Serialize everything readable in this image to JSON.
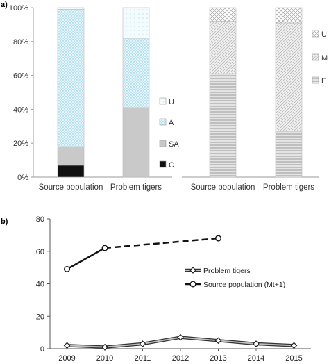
{
  "chart_data": [
    {
      "panel": "a)",
      "type": "bar",
      "stacked": true,
      "categories": [
        "Source population",
        "Problem tigers"
      ],
      "series": [
        {
          "name": "C",
          "color": "#111111",
          "pattern": "solid",
          "values": [
            7,
            0
          ]
        },
        {
          "name": "SA",
          "color": "#c9c9c9",
          "pattern": "solid",
          "values": [
            11,
            41
          ]
        },
        {
          "name": "A",
          "color": "#bfe3ef",
          "pattern": "dots",
          "values": [
            81,
            41
          ]
        },
        {
          "name": "U",
          "color": "#d6eef5",
          "pattern": "light",
          "values": [
            1,
            18
          ]
        }
      ],
      "yticks": [
        "0%",
        "20%",
        "40%",
        "60%",
        "80%",
        "100%"
      ],
      "ylim": [
        0,
        100
      ],
      "legend_position": "right"
    },
    {
      "panel": "",
      "type": "bar",
      "stacked": true,
      "categories": [
        "Source population",
        "Problem tigers"
      ],
      "series": [
        {
          "name": "F",
          "color": "#b7b7b7",
          "pattern": "horizontal",
          "values": [
            61,
            27
          ]
        },
        {
          "name": "M",
          "color": "#cccccc",
          "pattern": "diagonal",
          "values": [
            31,
            64
          ]
        },
        {
          "name": "U",
          "color": "#bbbbbb",
          "pattern": "crosshatch",
          "values": [
            8,
            9
          ]
        }
      ],
      "ylim": [
        0,
        100
      ],
      "legend_position": "right"
    },
    {
      "panel": "b)",
      "type": "line",
      "x": [
        2009,
        2010,
        2011,
        2012,
        2013,
        2014,
        2015
      ],
      "xticks": [
        "2009",
        "2010",
        "2011",
        "2012",
        "2013",
        "2014",
        "2015"
      ],
      "yticks": [
        "0",
        "20",
        "40",
        "60",
        "80"
      ],
      "ylim": [
        0,
        80
      ],
      "series": [
        {
          "name": "Problem tigers",
          "marker": "diamond",
          "style": "solid-double",
          "points": [
            [
              2009,
              2
            ],
            [
              2010,
              1
            ],
            [
              2011,
              3
            ],
            [
              2012,
              7
            ],
            [
              2013,
              5
            ],
            [
              2014,
              3
            ],
            [
              2015,
              2
            ]
          ]
        },
        {
          "name": "Source population (Mt+1)",
          "marker": "circle",
          "style": "solid-then-dashed",
          "points": [
            [
              2009,
              49
            ],
            [
              2010,
              62
            ],
            [
              2013,
              68
            ]
          ],
          "dashed_from_index": 1
        }
      ],
      "legend_position": "center-right"
    }
  ]
}
